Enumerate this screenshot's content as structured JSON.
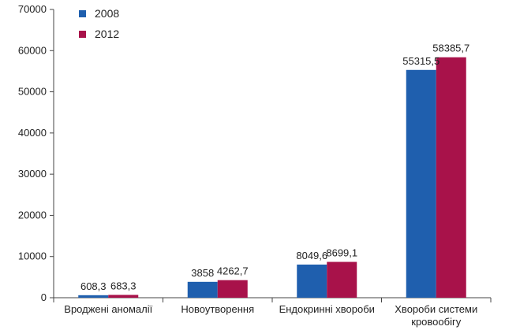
{
  "chart_data": {
    "type": "bar",
    "categories": [
      "Вроджені аномалії",
      "Новоутворення",
      "Ендокринні хвороби",
      "Хвороби системи кровообігу"
    ],
    "category_lines": [
      [
        "Вроджені аномалії"
      ],
      [
        "Новоутворення"
      ],
      [
        "Ендокринні хвороби"
      ],
      [
        "Хвороби системи",
        "кровообігу"
      ]
    ],
    "series": [
      {
        "name": "2008",
        "color": "#1f5fae",
        "values": [
          608.3,
          3858,
          8049.6,
          55315.5
        ],
        "labels": [
          "608,3",
          "3858",
          "8049,6",
          "55315,5"
        ]
      },
      {
        "name": "2012",
        "color": "#a8124a",
        "values": [
          683.3,
          4262.7,
          8699.1,
          58385.7
        ],
        "labels": [
          "683,3",
          "4262,7",
          "8699,1",
          "58385,7"
        ]
      }
    ],
    "ylim": [
      0,
      70000
    ],
    "yticks": [
      0,
      10000,
      20000,
      30000,
      40000,
      50000,
      60000,
      70000
    ],
    "legend_position": "top-left",
    "grid": false
  }
}
